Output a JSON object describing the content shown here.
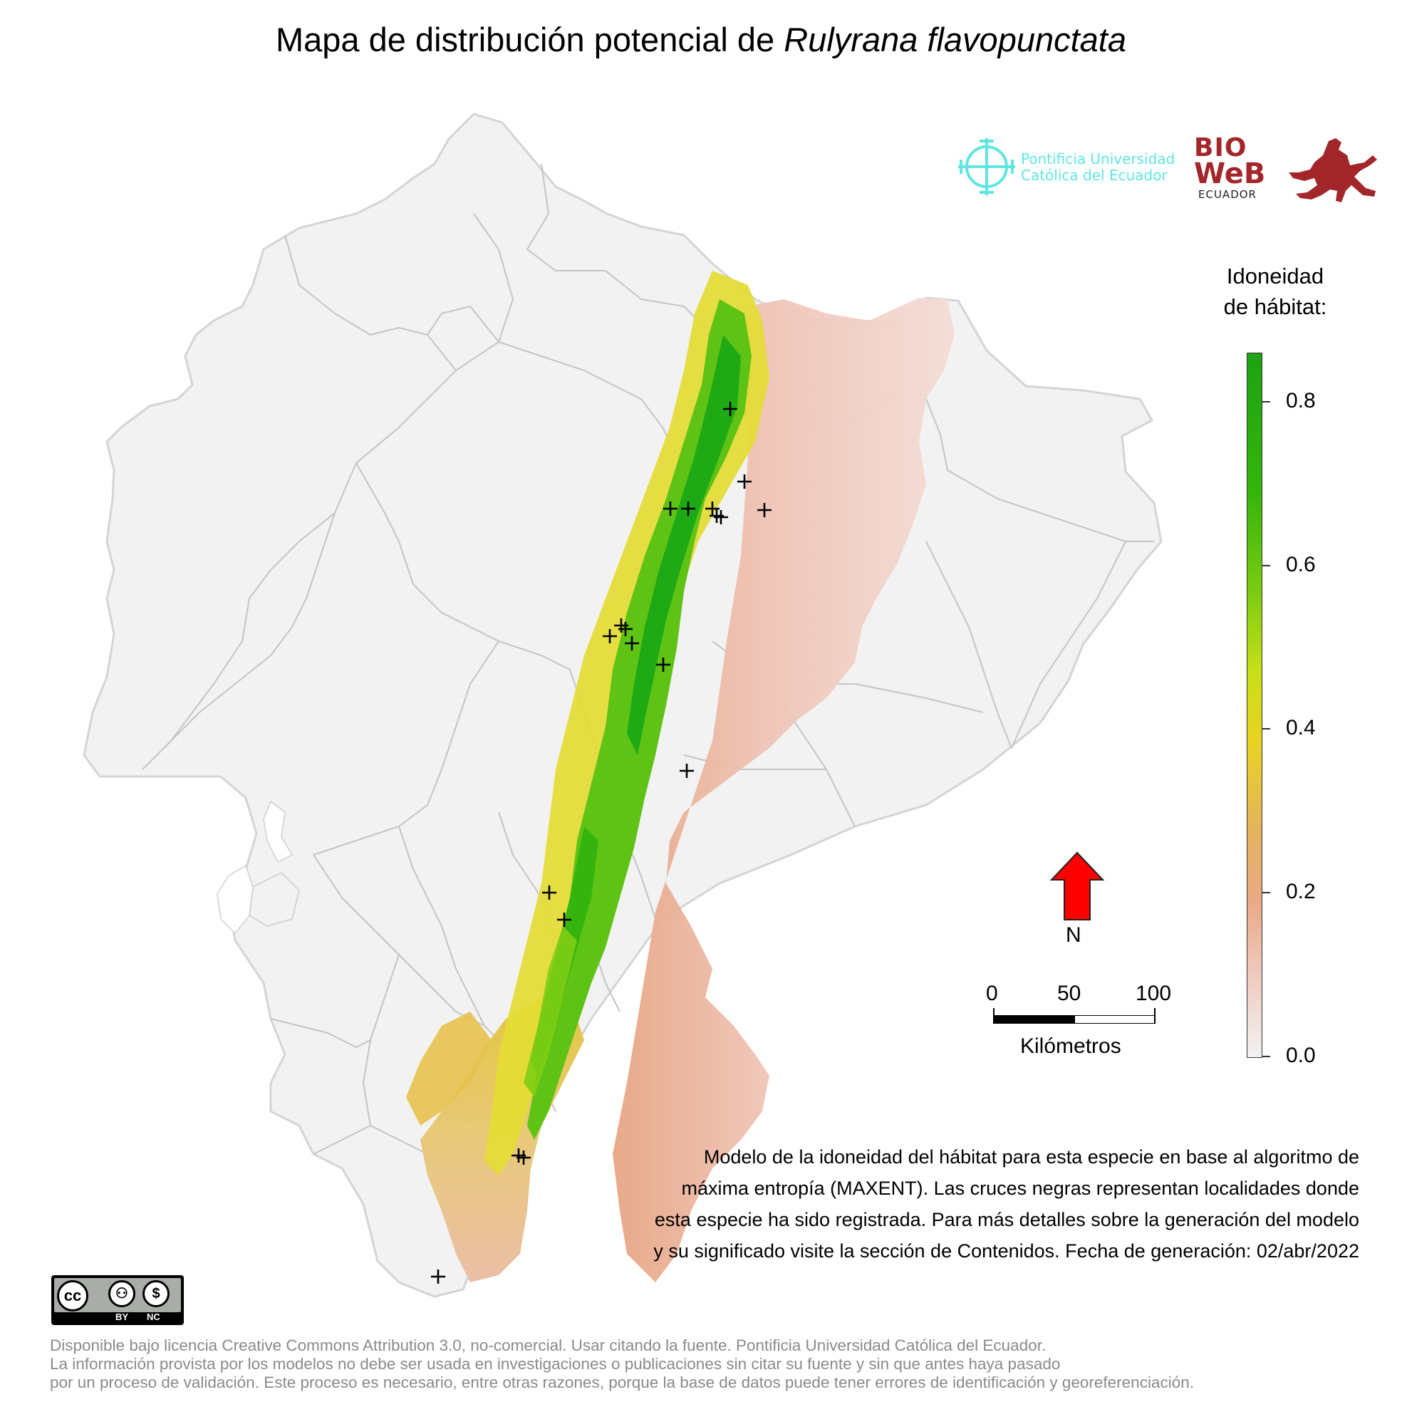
{
  "title": {
    "prefix": "Mapa de distribución potencial de ",
    "species": "Rulyrana flavopunctata"
  },
  "logos": {
    "puce_line1": "Pontificia Universidad",
    "puce_line2": "Católica del Ecuador",
    "bio_line1": "BIO",
    "bio_line2": "WeB",
    "bio_line3": "ECUADOR"
  },
  "legend": {
    "title_line1": "Idoneidad",
    "title_line2": "de hábitat:",
    "ticks": [
      "0.0",
      "0.2",
      "0.4",
      "0.6",
      "0.8"
    ],
    "tick_values": [
      0.0,
      0.2,
      0.4,
      0.6,
      0.8
    ],
    "max_value": 0.86,
    "colors": [
      "#f2f2f2",
      "#efc9bd",
      "#e3b35e",
      "#e9d321",
      "#7bcc12",
      "#1da314"
    ]
  },
  "north_arrow": {
    "label": "N",
    "color": "#ff0000"
  },
  "scale": {
    "labels": [
      "0",
      "50",
      "100"
    ],
    "title": "Kilómetros"
  },
  "description": {
    "lines": [
      "Modelo de la idoneidad del hábitat para esta especie en base al algoritmo de",
      "máxima entropía (MAXENT). Las cruces negras representan localidades donde",
      "esta especie ha sido registrada. Para más detalles sobre la generación del modelo",
      "y su significado visite la sección de Contenidos. Fecha de generación: 02/abr/2022"
    ]
  },
  "license_badge": {
    "by": "BY",
    "nc": "NC",
    "cc": "cc"
  },
  "footer": {
    "lines": [
      "Disponible bajo licencia Creative Commons Attribution 3.0, no-comercial. Usar citando la fuente. Pontificia Universidad Católica del Ecuador.",
      "La información provista por los modelos no debe ser usada en investigaciones o publicaciones sin citar su fuente y sin que antes haya pasado",
      "por un proceso de validación. Este proceso es necesario, entre otras razones, porque la base de datos puede tener errores de identificación y georeferenciación."
    ]
  }
}
